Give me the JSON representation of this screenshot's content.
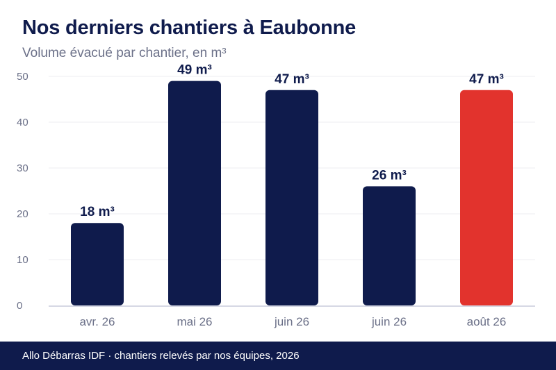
{
  "title": "Nos derniers chantiers à Eaubonne",
  "subtitle": "Volume évacué par chantier, en m³",
  "footer": "Allo Débarras IDF · chantiers relevés par nos équipes, 2026",
  "chart_data": {
    "type": "bar",
    "categories": [
      "avr. 26",
      "mai 26",
      "juin 26",
      "juin 26",
      "août 26"
    ],
    "values": [
      18,
      49,
      47,
      26,
      47
    ],
    "data_labels": [
      "18 m³",
      "49 m³",
      "47 m³",
      "26 m³",
      "47 m³"
    ],
    "highlight_index": 4,
    "yticks": [
      0,
      10,
      20,
      30,
      40,
      50
    ],
    "ylim": [
      0,
      50
    ],
    "grid": true,
    "legend": "none",
    "colors": {
      "bar": "#0f1b4c",
      "highlight": "#e2332d",
      "grid": "#ececf0",
      "axis": "#c9cbdc",
      "tick_label": "#6b7088",
      "data_label": "#0f1b4c"
    }
  }
}
